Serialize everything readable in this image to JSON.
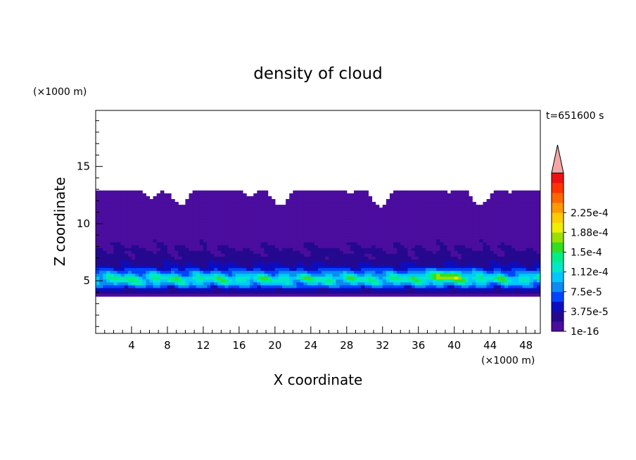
{
  "chart_data": {
    "type": "heatmap",
    "title": "density of cloud",
    "time_label": "t=651600 s",
    "xlabel": "X coordinate",
    "ylabel": "Z coordinate",
    "x_unit": "(×1000 m)",
    "y_unit": "(×1000 m)",
    "xlim": [
      0,
      49.6
    ],
    "ylim": [
      0.4,
      19.9
    ],
    "x_ticks": [
      4,
      8,
      12,
      16,
      20,
      24,
      28,
      32,
      36,
      40,
      44,
      48
    ],
    "y_ticks": [
      5,
      10,
      15
    ],
    "x_minor_step": 1,
    "y_minor_step": 1,
    "colorbar": {
      "labels": [
        "1e-16",
        "3.75e-5",
        "7.5e-5",
        "1.12e-4",
        "1.5e-4",
        "1.88e-4",
        "2.25e-4"
      ],
      "colors": [
        "#4b0d9e",
        "#24098f",
        "#0d0dbf",
        "#0044ff",
        "#0a8cf2",
        "#00c8ff",
        "#00e8c8",
        "#00ee88",
        "#33dd22",
        "#99e000",
        "#eeee00",
        "#ffcc00",
        "#ff9900",
        "#ff6600",
        "#ff3300",
        "#ee1111"
      ],
      "overflow_color": "#f4a6a6",
      "label_step": 2
    },
    "profile": [
      {
        "z": 3.6,
        "value": 1e-16
      },
      {
        "z": 4.3,
        "value": 3.75e-05
      },
      {
        "z": 4.7,
        "value": 7.5e-05
      },
      {
        "z": 5.2,
        "value": 0.000112
      },
      {
        "z": 5.6,
        "value": 7.5e-05
      },
      {
        "z": 6.2,
        "value": 3.75e-05
      },
      {
        "z": 7.0,
        "value": 2e-05
      },
      {
        "z": 9.0,
        "value": 1e-05
      },
      {
        "z": 12.0,
        "value": 1e-16
      }
    ],
    "max_region": {
      "x": 39,
      "z": 5.5,
      "value": 0.00015
    },
    "cloud_top_z": 13,
    "cloud_base_z": 3.6
  }
}
